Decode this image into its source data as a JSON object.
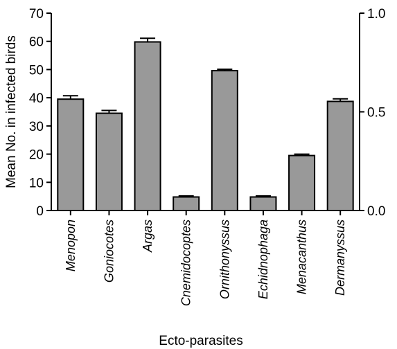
{
  "chart_data": {
    "type": "bar",
    "categories": [
      "Menopon",
      "Goniocotes",
      "Argas",
      "Cnemidocoptes",
      "Ornithonyssus",
      "Echidnophaga",
      "Menacanthus",
      "Dermanyssus"
    ],
    "values": [
      39.5,
      34.5,
      59.8,
      4.8,
      49.6,
      4.8,
      19.5,
      38.7
    ],
    "errors": [
      1.2,
      1.0,
      1.3,
      0.4,
      0.5,
      0.4,
      0.5,
      0.9
    ],
    "xlabel": "Ecto-parasites",
    "ylabel": "Mean No. in infected birds",
    "ylim": [
      0,
      70
    ],
    "yticks": [
      0,
      10,
      20,
      30,
      40,
      50,
      60,
      70
    ],
    "y2lim": [
      0,
      1.0
    ],
    "y2ticks": [
      0.0,
      0.5,
      1.0
    ],
    "y2tick_labels": [
      "0.0",
      "0.5",
      "1.0"
    ],
    "bar_color": "#999999",
    "grid": false,
    "legend": "none"
  }
}
